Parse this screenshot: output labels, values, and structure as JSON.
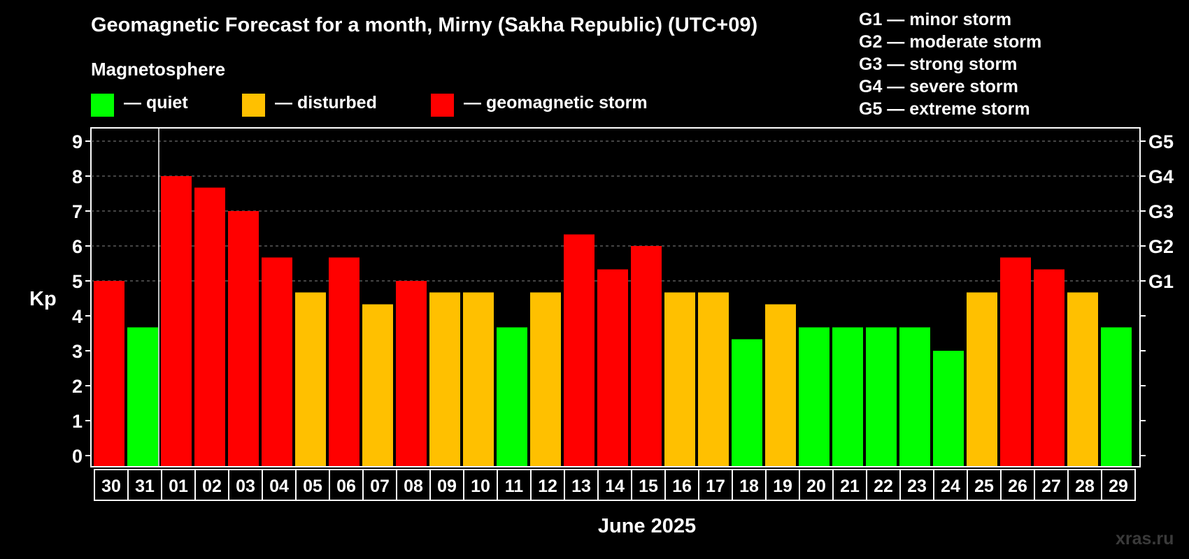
{
  "title": "Geomagnetic Forecast for a month, Mirny (Sakha Republic) (UTC+09)",
  "subtitle": "Magnetosphere",
  "legend": [
    {
      "label": "— quiet",
      "color": "#00ff00"
    },
    {
      "label": "— disturbed",
      "color": "#ffc000"
    },
    {
      "label": "— geomagnetic storm",
      "color": "#ff0000"
    }
  ],
  "g_scale": [
    "G1 — minor storm",
    "G2 — moderate storm",
    "G3 — strong storm",
    "G4 — severe storm",
    "G5 — extreme storm"
  ],
  "watermark": "xras.ru",
  "chart_data": {
    "type": "bar",
    "title": "Geomagnetic Forecast for a month, Mirny (Sakha Republic) (UTC+09)",
    "xlabel": "June 2025",
    "ylabel": "Kp",
    "ylim": [
      0,
      9
    ],
    "yticks": [
      "0",
      "1",
      "2",
      "3",
      "4",
      "5",
      "6",
      "7",
      "8",
      "9"
    ],
    "right_ticks": [
      {
        "value": 5,
        "label": "G1"
      },
      {
        "value": 6,
        "label": "G2"
      },
      {
        "value": 7,
        "label": "G3"
      },
      {
        "value": 8,
        "label": "G4"
      },
      {
        "value": 9,
        "label": "G5"
      }
    ],
    "grid": "dashed horizontal at Kp 5-9",
    "categories": [
      "30",
      "31",
      "01",
      "02",
      "03",
      "04",
      "05",
      "06",
      "07",
      "08",
      "09",
      "10",
      "11",
      "12",
      "13",
      "14",
      "15",
      "16",
      "17",
      "18",
      "19",
      "20",
      "21",
      "22",
      "23",
      "24",
      "25",
      "26",
      "27",
      "28",
      "29"
    ],
    "values": [
      5.0,
      3.67,
      8.0,
      7.67,
      7.0,
      5.67,
      4.67,
      5.67,
      4.33,
      5.0,
      4.67,
      4.67,
      3.67,
      4.67,
      6.33,
      5.33,
      6.0,
      4.67,
      4.67,
      3.33,
      4.33,
      3.67,
      3.67,
      3.67,
      3.67,
      3.0,
      4.67,
      5.67,
      5.33,
      4.67,
      3.67
    ],
    "status": [
      "storm",
      "quiet",
      "storm",
      "storm",
      "storm",
      "storm",
      "disturbed",
      "storm",
      "disturbed",
      "storm",
      "disturbed",
      "disturbed",
      "quiet",
      "disturbed",
      "storm",
      "storm",
      "storm",
      "disturbed",
      "disturbed",
      "quiet",
      "disturbed",
      "quiet",
      "quiet",
      "quiet",
      "quiet",
      "quiet",
      "disturbed",
      "storm",
      "storm",
      "disturbed",
      "quiet"
    ],
    "colors": {
      "quiet": "#00ff00",
      "disturbed": "#ffc000",
      "storm": "#ff0000"
    },
    "today_marker_after_category": "31"
  }
}
